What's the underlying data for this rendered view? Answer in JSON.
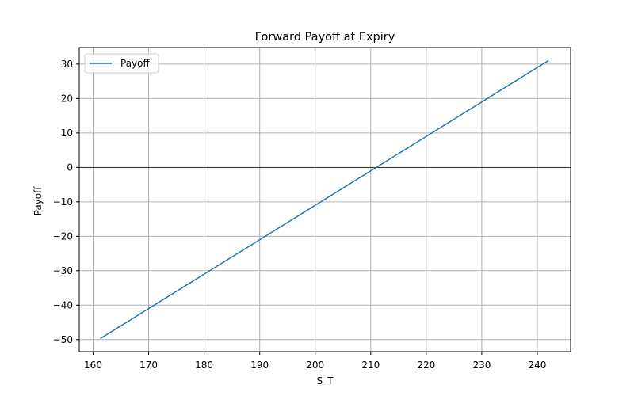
{
  "chart_data": {
    "type": "line",
    "title": "Forward Payoff at Expiry",
    "xlabel": "S_T",
    "ylabel": "Payoff",
    "xlim": [
      157.5,
      246.0
    ],
    "ylim": [
      -53.5,
      34.8
    ],
    "xticks": [
      160,
      170,
      180,
      190,
      200,
      210,
      220,
      230,
      240
    ],
    "yticks": [
      -50,
      -40,
      -30,
      -20,
      -10,
      0,
      10,
      20,
      30
    ],
    "ytick_labels": [
      "−50",
      "−40",
      "−30",
      "−20",
      "−10",
      "0",
      "10",
      "20",
      "30"
    ],
    "grid": true,
    "legend_placement": "top-left",
    "zero_line": 0,
    "series": [
      {
        "name": "Payoff",
        "color": "#1f77b4",
        "x": [
          161.3,
          242.0
        ],
        "y": [
          -49.7,
          31.0
        ]
      }
    ]
  }
}
